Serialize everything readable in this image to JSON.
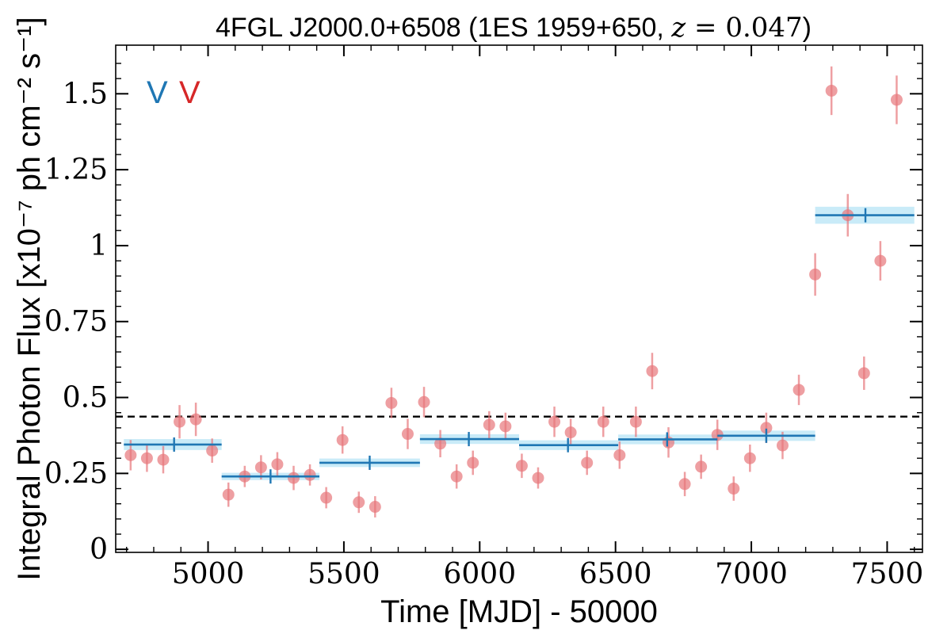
{
  "chart_data": {
    "type": "scatter",
    "title": "4FGL J2000.0+6508 (1ES 1959+650, z = 0.047)",
    "title_parts": {
      "prefix": "4FGL J2000.0+6508 (1ES 1959+650, ",
      "z_var": "z",
      "z_eq": " = 0.047",
      "suffix": ")"
    },
    "xlabel": "Time [MJD] - 50000",
    "ylabel": "Integral Photon Flux [x10⁻⁷ ph cm⁻² s⁻¹]",
    "xlim": [
      4660,
      7630
    ],
    "ylim": [
      -0.01,
      1.66
    ],
    "xticks": [
      5000,
      5500,
      6000,
      6500,
      7000,
      7500
    ],
    "xtick_labels": [
      "5000",
      "5500",
      "6000",
      "6500",
      "7000",
      "7500"
    ],
    "yticks": [
      0,
      0.25,
      0.5,
      0.75,
      1,
      1.25,
      1.5
    ],
    "ytick_labels": [
      "0",
      "0.25",
      "0.5",
      "0.75",
      "1",
      "1.25",
      "1.5"
    ],
    "grid": false,
    "markers_text": [
      {
        "text": "V",
        "color": "#1f77b4"
      },
      {
        "text": "V",
        "color": "#d62728"
      }
    ],
    "reference_line": {
      "y": 0.437,
      "style": "dashed",
      "color": "#000000"
    },
    "colors": {
      "points": "#e8777b",
      "points_err": "#e8777b",
      "binned": "#1f77b4",
      "binned_band": "#bfe8f7",
      "marker_blue": "#1f77b4",
      "marker_red": "#d62728"
    },
    "series": [
      {
        "kind": "points",
        "x": [
          4715,
          4775,
          4835,
          4895,
          4955,
          5015,
          5075,
          5135,
          5195,
          5255,
          5315,
          5375,
          5435,
          5495,
          5555,
          5615,
          5675,
          5735,
          5795,
          5855,
          5915,
          5975,
          6035,
          6095,
          6155,
          6215,
          6275,
          6335,
          6395,
          6455,
          6515,
          6575,
          6635,
          6695,
          6755,
          6815,
          6875,
          6935,
          6995,
          7055,
          7115,
          7175,
          7235,
          7295,
          7355,
          7415,
          7475,
          7535
        ],
        "y": [
          0.31,
          0.3,
          0.295,
          0.42,
          0.428,
          0.325,
          0.18,
          0.24,
          0.27,
          0.28,
          0.235,
          0.245,
          0.17,
          0.36,
          0.155,
          0.14,
          0.482,
          0.38,
          0.485,
          0.348,
          0.24,
          0.285,
          0.41,
          0.405,
          0.275,
          0.235,
          0.42,
          0.385,
          0.285,
          0.42,
          0.31,
          0.42,
          0.587,
          0.352,
          0.215,
          0.272,
          0.377,
          0.2,
          0.3,
          0.4,
          0.342,
          0.525,
          0.905,
          1.51,
          1.1,
          0.58,
          0.95,
          1.48
        ],
        "yerr": [
          0.05,
          0.045,
          0.045,
          0.055,
          0.055,
          0.04,
          0.04,
          0.035,
          0.04,
          0.04,
          0.04,
          0.035,
          0.035,
          0.045,
          0.035,
          0.035,
          0.05,
          0.05,
          0.05,
          0.045,
          0.04,
          0.04,
          0.045,
          0.045,
          0.04,
          0.035,
          0.05,
          0.045,
          0.04,
          0.05,
          0.045,
          0.05,
          0.06,
          0.05,
          0.04,
          0.04,
          0.05,
          0.04,
          0.045,
          0.05,
          0.045,
          0.05,
          0.07,
          0.08,
          0.07,
          0.055,
          0.065,
          0.08
        ]
      },
      {
        "kind": "binned",
        "bins": [
          {
            "x0": 4690,
            "x1": 5050,
            "xc": 4875,
            "y": 0.345,
            "yerr": 0.018
          },
          {
            "x0": 5050,
            "x1": 5410,
            "xc": 5230,
            "y": 0.24,
            "yerr": 0.012
          },
          {
            "x0": 5410,
            "x1": 5780,
            "xc": 5595,
            "y": 0.285,
            "yerr": 0.014
          },
          {
            "x0": 5780,
            "x1": 6145,
            "xc": 5960,
            "y": 0.363,
            "yerr": 0.016
          },
          {
            "x0": 6145,
            "x1": 6510,
            "xc": 6325,
            "y": 0.343,
            "yerr": 0.016
          },
          {
            "x0": 6510,
            "x1": 6875,
            "xc": 6690,
            "y": 0.362,
            "yerr": 0.016
          },
          {
            "x0": 6875,
            "x1": 7235,
            "xc": 7055,
            "y": 0.374,
            "yerr": 0.017
          },
          {
            "x0": 7235,
            "x1": 7600,
            "xc": 7420,
            "y": 1.1,
            "yerr": 0.028
          }
        ]
      }
    ]
  }
}
